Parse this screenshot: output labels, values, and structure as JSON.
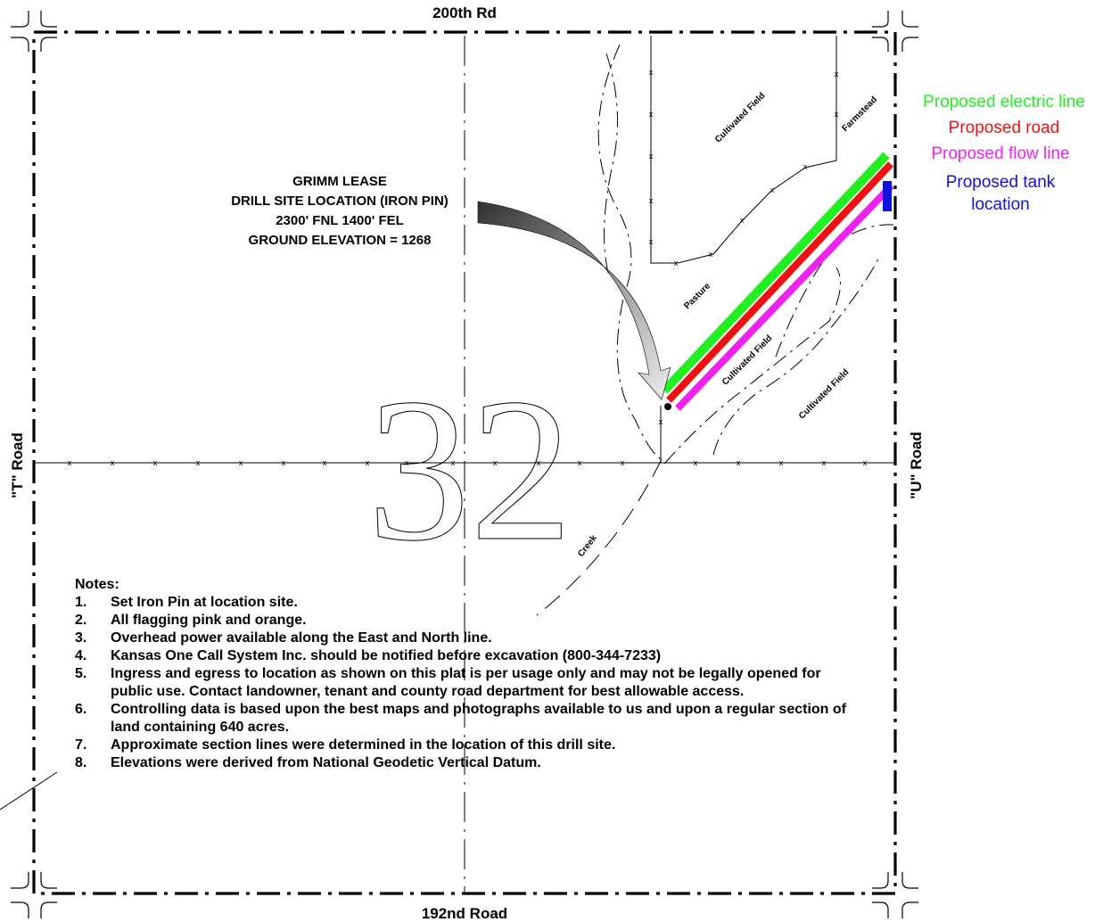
{
  "roads": {
    "north": "200th Rd",
    "south": "192nd Road",
    "west": "\"T\" Road",
    "east": "\"U\" Road"
  },
  "section_number": "32",
  "lease": {
    "line1": "GRIMM LEASE",
    "line2": "DRILL SITE LOCATION (IRON PIN)",
    "line3": "2300' FNL  1400' FEL",
    "line4": "GROUND ELEVATION = 1268"
  },
  "areas": {
    "cultivated_field_1": "Cultivated Field",
    "farmstead": "Farmstead",
    "pasture": "Pasture",
    "cultivated_field_2": "Cultivated Field",
    "cultivated_field_3": "Cultivated Field",
    "creek": "Creek"
  },
  "legend": {
    "electric": {
      "label": "Proposed electric line",
      "color": "#22ee22"
    },
    "road": {
      "label": "Proposed road",
      "color": "#ee1111"
    },
    "flow": {
      "label": "Proposed flow line",
      "color": "#ee22ee"
    },
    "tank_line1": "Proposed tank",
    "tank_line2": "location",
    "tank_color": "#1111dd"
  },
  "fence_marker": "x",
  "notes": {
    "title": "Notes:",
    "items": [
      {
        "num": "1.",
        "text": "Set Iron Pin at location site."
      },
      {
        "num": "2.",
        "text": "All flagging pink and orange."
      },
      {
        "num": "3.",
        "text": "Overhead power available along the East and North line."
      },
      {
        "num": "4.",
        "text": "Kansas One Call System Inc. should be notified before excavation (800-344-7233)"
      },
      {
        "num": "5.",
        "text": "Ingress and egress to location as shown on this plat is per usage only and may not be legally opened for public use.  Contact landowner, tenant and county road department for best allowable access."
      },
      {
        "num": "6.",
        "text": "Controlling data is based upon the best maps and photographs available to us and upon a regular section of land containing 640 acres."
      },
      {
        "num": "7.",
        "text": "Approximate section lines were determined in the location of this drill site."
      },
      {
        "num": "8.",
        "text": "Elevations were derived from National Geodetic Vertical Datum."
      }
    ]
  }
}
